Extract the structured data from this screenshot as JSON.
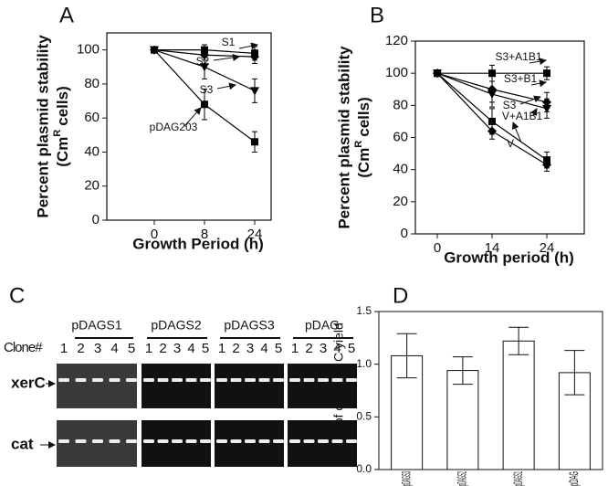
{
  "chart_data": [
    {
      "label": "A",
      "type": "line",
      "xlabel": "Growth Period (h)",
      "ylabel": "Percent plasmid stability",
      "ylabel_unit": [
        "(Cm",
        "R",
        "cells)"
      ],
      "categories": [
        "0",
        "8",
        "24"
      ],
      "ylim": [
        0,
        110
      ],
      "yticks": [
        0,
        20,
        40,
        60,
        80,
        100
      ],
      "series": [
        {
          "name": "S1",
          "color": "#000000",
          "marker": "square",
          "values": [
            100,
            100,
            98
          ],
          "errors": [
            1,
            3,
            4
          ]
        },
        {
          "name": "S2",
          "color": "#000000",
          "marker": "diamond",
          "values": [
            100,
            97,
            96
          ],
          "errors": [
            1,
            3,
            4
          ]
        },
        {
          "name": "S3",
          "color": "#000000",
          "marker": "triangle",
          "values": [
            100,
            90,
            76
          ],
          "errors": [
            1,
            7,
            7
          ]
        },
        {
          "name": "pDAG203",
          "color": "#000000",
          "marker": "square",
          "values": [
            100,
            68,
            46
          ],
          "errors": [
            1,
            9,
            6
          ]
        }
      ]
    },
    {
      "label": "B",
      "type": "line",
      "xlabel": "Growth period (h)",
      "ylabel": "Percent plasmid stability",
      "ylabel_unit": [
        "(Cm",
        "R",
        "cells)"
      ],
      "categories": [
        "0",
        "14",
        "24"
      ],
      "ylim": [
        0,
        120
      ],
      "yticks": [
        0,
        20,
        40,
        60,
        80,
        100,
        120
      ],
      "series": [
        {
          "name": "S3+A1B1",
          "color": "#000000",
          "marker": "square",
          "values": [
            100,
            100,
            100
          ],
          "errors": [
            1,
            5,
            4
          ]
        },
        {
          "name": "S3+B1",
          "color": "#000000",
          "marker": "diamond",
          "values": [
            100,
            90,
            82
          ],
          "errors": [
            1,
            8,
            6
          ]
        },
        {
          "name": "S3",
          "color": "#000000",
          "marker": "triangle",
          "values": [
            100,
            87,
            78
          ],
          "errors": [
            1,
            8,
            6
          ]
        },
        {
          "name": "V+A1B1",
          "color": "#000000",
          "marker": "square",
          "values": [
            100,
            70,
            46
          ],
          "errors": [
            1,
            8,
            5
          ]
        },
        {
          "name": "V",
          "color": "#000000",
          "marker": "diamond",
          "values": [
            100,
            64,
            43
          ],
          "errors": [
            1,
            5,
            4
          ]
        }
      ]
    },
    {
      "label": "D",
      "type": "bar",
      "ylabel": "Ratio of cat / xer C yield",
      "categories": [
        "pDAGS3",
        "pDAGS2",
        "pDAGS1",
        "pDAG"
      ],
      "values": [
        1.08,
        0.94,
        1.22,
        0.92
      ],
      "errors": [
        0.21,
        0.13,
        0.13,
        0.21
      ],
      "color": "#ffffff",
      "ylim": [
        0,
        1.5
      ],
      "yticks": [
        {
          "value": 0,
          "label": "0.0"
        },
        0.5,
        {
          "value": 1,
          "label": "1.0"
        },
        1.5
      ]
    }
  ],
  "gel": {
    "label": "C",
    "groups": [
      "pDAGS1",
      "pDAGS2",
      "pDAGS3",
      "pDAG"
    ],
    "clone_label": "Clone#",
    "clones": [
      "1",
      "2",
      "3",
      "4",
      "5"
    ],
    "rows": [
      "xerC",
      "cat"
    ]
  }
}
